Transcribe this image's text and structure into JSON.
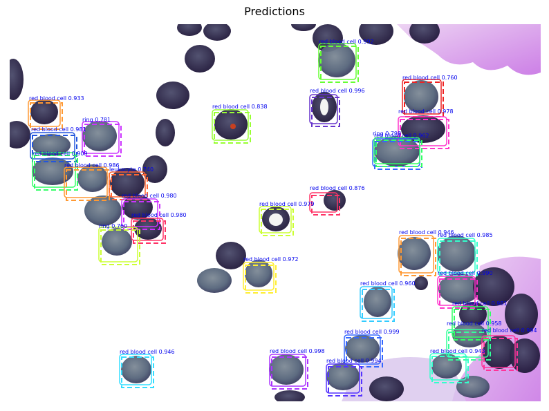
{
  "title": "Predictions",
  "image": {
    "description_colors": {
      "background": "#ffffff",
      "cell": "#5e6a7a",
      "cell_dark": "#3a2f5a",
      "stain": "#d66ae0",
      "label_text": "#0000ee"
    }
  },
  "detections": [
    {
      "label": "red blood cell 0.992",
      "color": "#66ff33"
    },
    {
      "label": "red blood cell 0.760",
      "color": "#ee2222"
    },
    {
      "label": "red blood cell 0.996",
      "color": "#6633cc"
    },
    {
      "label": "red blood cell 0.978",
      "color": "#ff33cc"
    },
    {
      "label": "red blood cell 0.933",
      "color": "#ff9933"
    },
    {
      "label": "red blood cell 0.838",
      "color": "#99ff33"
    },
    {
      "label": "ring 0.781",
      "color": "#cc33ff"
    },
    {
      "label": "red blood cell 0.981",
      "color": "#2255dd"
    },
    {
      "label": "ring 0.798",
      "color": "#3366ff"
    },
    {
      "label": "red blood cell 0.962",
      "color": "#33ff66"
    },
    {
      "label": "red blood cell 0.909",
      "color": "#33ff66"
    },
    {
      "label": "red blood cell 0.986",
      "color": "#ff9933"
    },
    {
      "label": "leukocyte 0.740",
      "color": "#ff6633"
    },
    {
      "label": "red blood cell 0.876",
      "color": "#ff3366"
    },
    {
      "label": "red blood cell 0.980",
      "color": "#cc33ff"
    },
    {
      "label": "red blood cell 0.980",
      "color": "#ff3366"
    },
    {
      "label": "red blood cell 0.979",
      "color": "#ccff33"
    },
    {
      "label": "ring 0.760",
      "color": "#ccff33"
    },
    {
      "label": "red blood cell 0.946",
      "color": "#ff9933"
    },
    {
      "label": "red blood cell 0.985",
      "color": "#33ffcc"
    },
    {
      "label": "red blood cell 0.972",
      "color": "#ffee33"
    },
    {
      "label": "red blood cell 0.990",
      "color": "#ff33cc"
    },
    {
      "label": "red blood cell 0.960",
      "color": "#33ccff"
    },
    {
      "label": "red blood cell 0.981",
      "color": "#33ff66"
    },
    {
      "label": "red blood cell 0.999",
      "color": "#3366ff"
    },
    {
      "label": "red blood cell 0.958",
      "color": "#33ff99"
    },
    {
      "label": "red blood cell 0.994",
      "color": "#ff3399"
    },
    {
      "label": "red blood cell 0.946",
      "color": "#33ddff"
    },
    {
      "label": "red blood cell 0.998",
      "color": "#aa33ff"
    },
    {
      "label": "red blood cell 0.994",
      "color": "#5533ff"
    },
    {
      "label": "red blood cell 0.943",
      "color": "#33ffcc"
    }
  ]
}
